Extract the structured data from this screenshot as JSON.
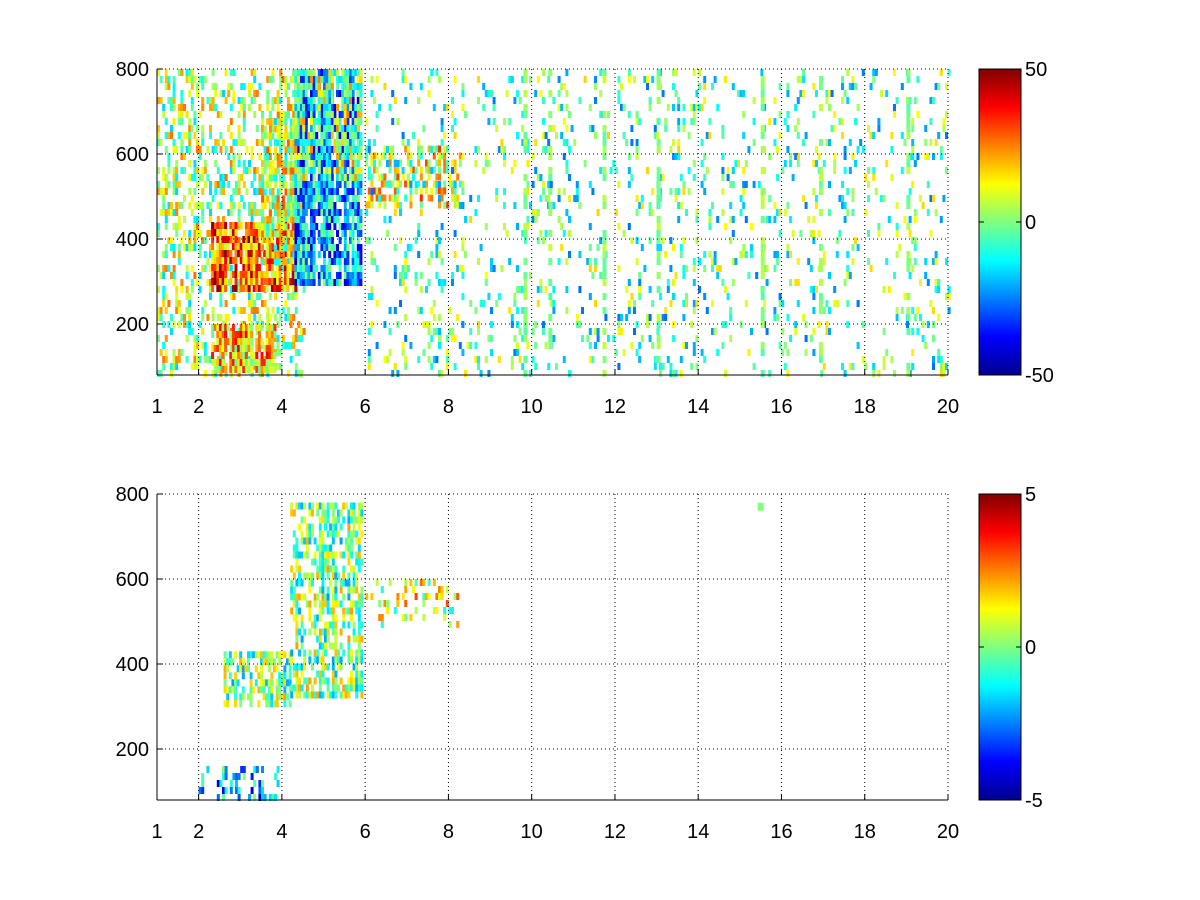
{
  "chart_data": [
    {
      "type": "heatmap",
      "title": "",
      "xlabel": "",
      "ylabel": "",
      "xlim": [
        1,
        20
      ],
      "ylim": [
        80,
        800
      ],
      "x_ticks": [
        "1",
        "2",
        "4",
        "6",
        "8",
        "10",
        "12",
        "14",
        "16",
        "18",
        "20"
      ],
      "y_ticks": [
        "200",
        "400",
        "600",
        "800"
      ],
      "grid": "dotted",
      "colormap": "jet",
      "colorbar": {
        "range": [
          -50,
          50
        ],
        "ticks": [
          "50",
          "0",
          "-50"
        ]
      },
      "regions": [
        {
          "x": [
            1.0,
            4.5
          ],
          "y": [
            80,
            800
          ],
          "value": 5,
          "density": 0.35
        },
        {
          "x": [
            2.3,
            4.3
          ],
          "y": [
            290,
            440
          ],
          "value": 28,
          "density": 0.85
        },
        {
          "x": [
            2.3,
            3.8
          ],
          "y": [
            90,
            200
          ],
          "value": 18,
          "density": 0.8
        },
        {
          "x": [
            3.5,
            4.6
          ],
          "y": [
            350,
            700
          ],
          "value": 8,
          "density": 0.6
        },
        {
          "x": [
            4.3,
            5.9
          ],
          "y": [
            300,
            800
          ],
          "value": -20,
          "density": 0.8
        },
        {
          "x": [
            4.3,
            5.9
          ],
          "y": [
            550,
            800
          ],
          "value": 5,
          "density": 0.5
        },
        {
          "x": [
            6.0,
            8.3
          ],
          "y": [
            480,
            620
          ],
          "value": 12,
          "density": 0.45
        },
        {
          "x": [
            6.0,
            20.0
          ],
          "y": [
            80,
            800
          ],
          "value": -5,
          "density": 0.12
        }
      ],
      "stripes_x": [
        11.7,
        13.0,
        15.5,
        9.8,
        16.9,
        10.4,
        19.0
      ]
    },
    {
      "type": "heatmap",
      "title": "",
      "xlabel": "",
      "ylabel": "",
      "xlim": [
        1,
        20
      ],
      "ylim": [
        80,
        800
      ],
      "x_ticks": [
        "1",
        "2",
        "4",
        "6",
        "8",
        "10",
        "12",
        "14",
        "16",
        "18",
        "20"
      ],
      "y_ticks": [
        "200",
        "400",
        "600",
        "800"
      ],
      "grid": "dotted",
      "colormap": "jet",
      "colorbar": {
        "range": [
          -5,
          5
        ],
        "ticks": [
          "5",
          "0",
          "-5"
        ]
      },
      "regions": [
        {
          "x": [
            2.6,
            4.2
          ],
          "y": [
            300,
            430
          ],
          "value": 0,
          "density": 0.55
        },
        {
          "x": [
            4.2,
            5.9
          ],
          "y": [
            320,
            780
          ],
          "value": 0,
          "density": 0.55
        },
        {
          "x": [
            2.0,
            3.9
          ],
          "y": [
            90,
            160
          ],
          "value": -2,
          "density": 0.35
        },
        {
          "x": [
            6.0,
            8.2
          ],
          "y": [
            500,
            600
          ],
          "value": 1,
          "density": 0.2
        }
      ],
      "points": [
        {
          "x": 15.5,
          "y": 770,
          "value": 0
        }
      ]
    }
  ]
}
